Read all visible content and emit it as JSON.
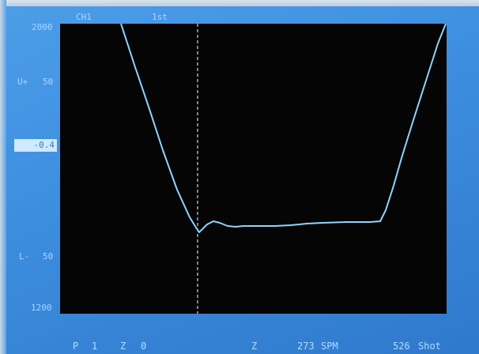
{
  "header": {
    "channel": "CH1",
    "sequence": "1st"
  },
  "left_scale": {
    "top_value": "2000",
    "upper_label": "U+",
    "upper_value": "50",
    "current_value": "-0.4",
    "lower_label": "L-",
    "lower_value": "50",
    "bottom_value": "1200"
  },
  "status_bar": {
    "p_label": "P",
    "p_value": "1",
    "z_label": "Z",
    "z_value": "0",
    "z2_label": "Z",
    "spm_value": "273",
    "spm_unit": "SPM",
    "shot_value": "526",
    "shot_unit": "Shot"
  },
  "colors": {
    "background": "#3e8fe0",
    "plot_background": "#050505",
    "trace": "#8fd4ff",
    "marker": "#ffffff",
    "label_text": "#a9d6ff"
  }
}
